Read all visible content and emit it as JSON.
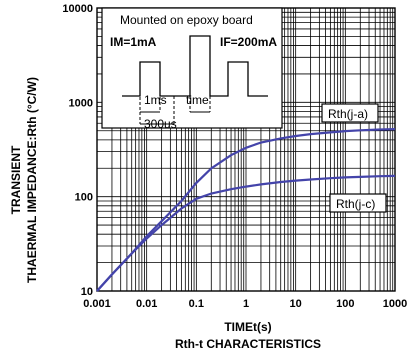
{
  "chart_data": {
    "type": "line",
    "xscale": "log",
    "yscale": "log",
    "xlim": [
      0.001,
      1000
    ],
    "ylim": [
      10,
      10000
    ],
    "x_tick_labels": [
      "0.001",
      "0.01",
      "0.1",
      "1",
      "10",
      "100",
      "1000"
    ],
    "y_tick_labels": [
      "10",
      "100",
      "1000",
      "10000"
    ],
    "xlabel": "TIMEt(s)",
    "ylabel_line1": "TRANSIENT",
    "ylabel_line2": "THAERMAL IMPEDANCE:Rth (°C/W)",
    "caption": "Rth-t CHARACTERISTICS",
    "grid": true,
    "series": [
      {
        "name": "Rth(j-a)",
        "color": "#4444aa",
        "x": [
          0.001,
          0.002,
          0.005,
          0.01,
          0.02,
          0.05,
          0.1,
          0.2,
          0.5,
          1,
          2,
          5,
          10,
          20,
          50,
          100,
          200,
          500,
          1000
        ],
        "y": [
          10,
          15,
          25,
          38,
          55,
          90,
          140,
          200,
          275,
          330,
          375,
          415,
          440,
          460,
          480,
          495,
          505,
          515,
          520
        ]
      },
      {
        "name": "Rth(j-c)",
        "color": "#4444aa",
        "x": [
          0.001,
          0.002,
          0.005,
          0.01,
          0.02,
          0.05,
          0.1,
          0.2,
          0.5,
          1,
          2,
          5,
          10,
          20,
          50,
          100,
          200,
          500,
          1000
        ],
        "y": [
          10,
          15,
          25,
          36,
          50,
          75,
          95,
          108,
          120,
          128,
          135,
          143,
          148,
          152,
          157,
          160,
          162,
          165,
          166
        ]
      }
    ],
    "inset": {
      "title": "Mounted on epoxy board",
      "left_label": "IM=1mA",
      "right_label": "IF=200mA",
      "pulse1_label": "1ms",
      "pulse2_label": "time",
      "period_label": "300us"
    }
  }
}
